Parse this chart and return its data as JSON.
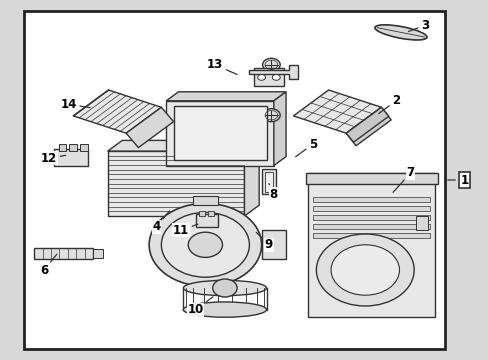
{
  "bg_color": "#d8d8d8",
  "diagram_bg": "#e8e8e8",
  "border_color": "#222222",
  "line_color": "#333333",
  "text_color": "#000000",
  "label_fontsize": 8.5,
  "border_linewidth": 2.0,
  "part_linewidth": 1.0,
  "diagram_bounds": [
    0.05,
    0.03,
    0.91,
    0.97
  ],
  "labels_info": {
    "1": [
      0.945,
      0.5,
      0.91,
      0.5
    ],
    "2": [
      0.81,
      0.72,
      0.77,
      0.68
    ],
    "3": [
      0.87,
      0.93,
      0.83,
      0.91
    ],
    "4": [
      0.32,
      0.37,
      0.35,
      0.42
    ],
    "5": [
      0.64,
      0.6,
      0.6,
      0.56
    ],
    "6": [
      0.09,
      0.25,
      0.12,
      0.3
    ],
    "7": [
      0.84,
      0.52,
      0.8,
      0.46
    ],
    "8": [
      0.56,
      0.46,
      0.55,
      0.49
    ],
    "9": [
      0.55,
      0.32,
      0.52,
      0.36
    ],
    "10": [
      0.4,
      0.14,
      0.44,
      0.18
    ],
    "11": [
      0.37,
      0.36,
      0.41,
      0.38
    ],
    "12": [
      0.1,
      0.56,
      0.14,
      0.57
    ],
    "13": [
      0.44,
      0.82,
      0.49,
      0.79
    ],
    "14": [
      0.14,
      0.71,
      0.19,
      0.7
    ]
  }
}
